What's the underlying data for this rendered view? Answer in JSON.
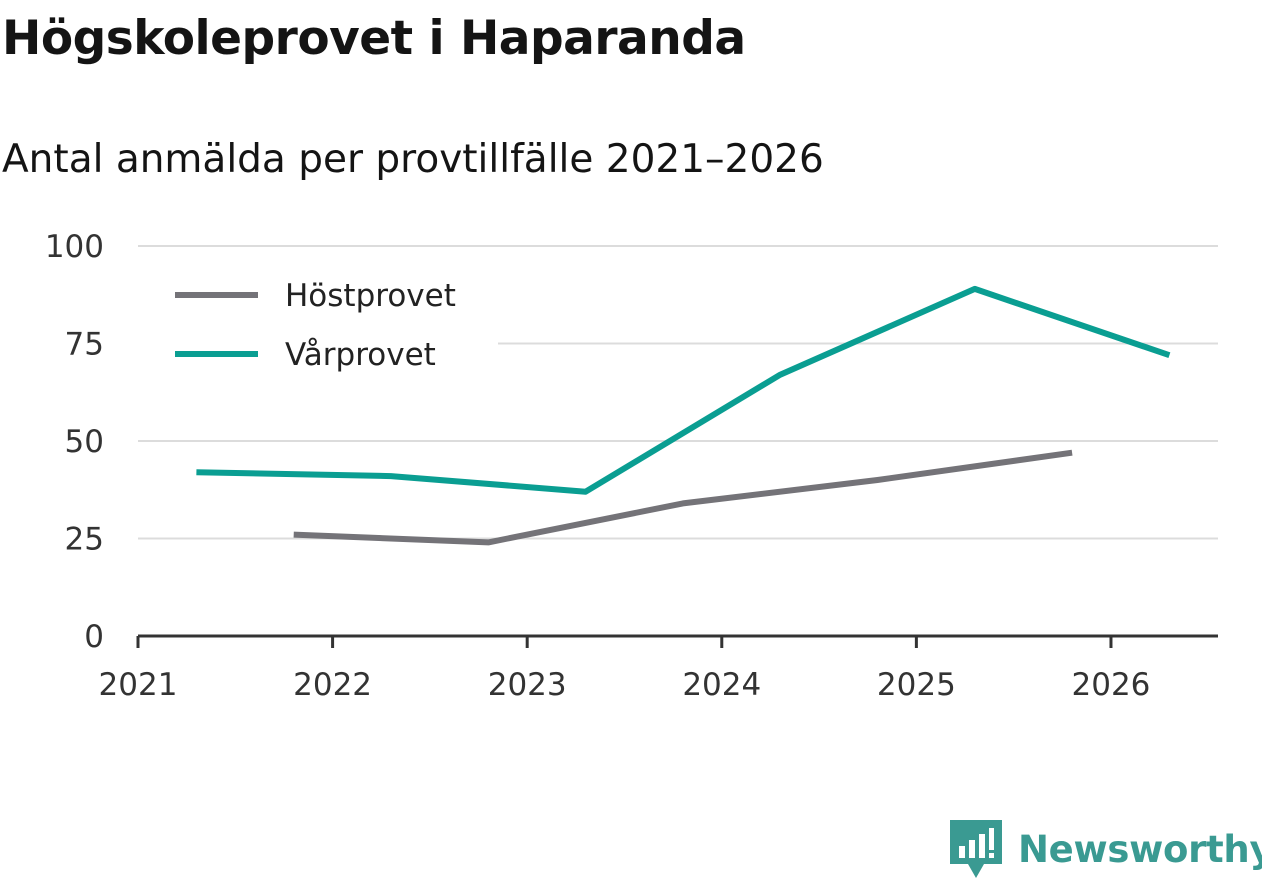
{
  "header": {
    "title": "Högskoleprovet i Haparanda",
    "subtitle": "Antal anmälda per provtillfälle 2021–2026"
  },
  "brand": {
    "name": "Newsworthy",
    "icon": "newsworthy-logo-icon",
    "color": "#3a9a92"
  },
  "chart_data": {
    "type": "line",
    "title": "Högskoleprovet i Haparanda",
    "subtitle": "Antal anmälda per provtillfälle 2021–2026",
    "xlabel": "",
    "ylabel": "",
    "xlim": [
      2021,
      2026.55
    ],
    "ylim": [
      0,
      100
    ],
    "x_ticks": [
      "2021",
      "2022",
      "2023",
      "2024",
      "2025",
      "2026"
    ],
    "y_ticks": [
      "0",
      "25",
      "50",
      "75",
      "100"
    ],
    "grid": true,
    "legend_position": "top-left",
    "series": [
      {
        "name": "Höstprovet",
        "color": "#747378",
        "x": [
          2021.8,
          2022.8,
          2023.8,
          2024.8,
          2025.8
        ],
        "values": [
          26,
          24,
          34,
          40,
          47
        ]
      },
      {
        "name": "Vårprovet",
        "color": "#0a9e92",
        "x": [
          2021.3,
          2022.3,
          2023.3,
          2024.3,
          2025.3,
          2026.3
        ],
        "values": [
          42,
          41,
          37,
          67,
          89,
          72
        ]
      }
    ]
  }
}
